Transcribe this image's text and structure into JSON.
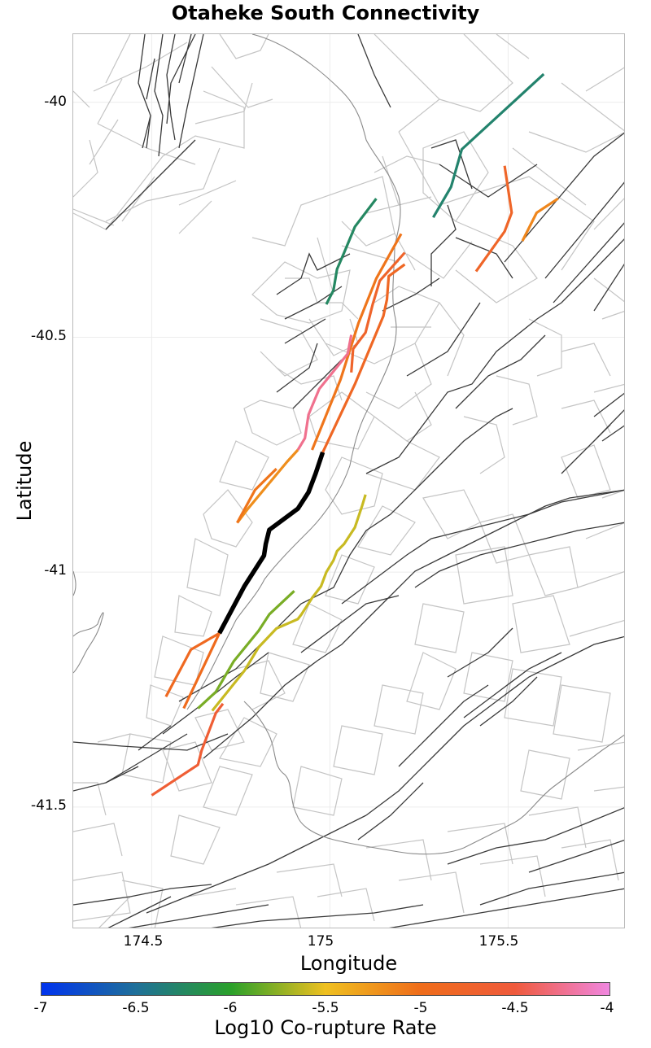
{
  "title": "Otaheke South Connectivity",
  "chart_data": {
    "type": "map",
    "title": "Otaheke South Connectivity",
    "xlabel": "Longitude",
    "ylabel": "Latitude",
    "xlim": [
      174.28,
      175.83
    ],
    "ylim": [
      -41.76,
      -39.855
    ],
    "xticks": [
      "174.5",
      "175",
      "175.5"
    ],
    "yticks": [
      "-40",
      "-40.5",
      "-41",
      "-41.5"
    ],
    "xtick_values": [
      174.5,
      175.0,
      175.5
    ],
    "ytick_values": [
      -40.0,
      -40.5,
      -41.0,
      -41.5
    ],
    "colorbar": {
      "label": "Log10 Co-rupture Rate",
      "range": [
        -7,
        -4
      ],
      "ticks": [
        "-7",
        "-6.5",
        "-6",
        "-5.5",
        "-5",
        "-4.5",
        "-4"
      ],
      "colors": [
        "#0033ee",
        "#1f7099",
        "#2aa02a",
        "#efc020",
        "#ef6d1a",
        "#ef5a3c",
        "#f087e0"
      ]
    },
    "target_fault": {
      "name": "Otaheke South",
      "color": "#000000",
      "path": [
        [
          174.69,
          -41.13
        ],
        [
          174.76,
          -41.03
        ],
        [
          174.815,
          -40.965
        ],
        [
          174.82,
          -40.94
        ],
        [
          174.83,
          -40.91
        ],
        [
          174.91,
          -40.865
        ],
        [
          174.94,
          -40.83
        ],
        [
          174.96,
          -40.79
        ],
        [
          174.98,
          -40.745
        ]
      ]
    },
    "co_rupture_faults": [
      {
        "rate": -6.25,
        "path": [
          [
            174.99,
            -40.43
          ],
          [
            175.01,
            -40.4
          ],
          [
            175.02,
            -40.355
          ],
          [
            175.04,
            -40.32
          ],
          [
            175.07,
            -40.265
          ],
          [
            175.13,
            -40.205
          ]
        ]
      },
      {
        "rate": -6.3,
        "path": [
          [
            175.29,
            -40.245
          ],
          [
            175.34,
            -40.18
          ],
          [
            175.37,
            -40.1
          ],
          [
            175.6,
            -39.94
          ]
        ]
      },
      {
        "rate": -4.8,
        "path": [
          [
            175.41,
            -40.36
          ],
          [
            175.49,
            -40.275
          ],
          [
            175.51,
            -40.235
          ],
          [
            175.49,
            -40.135
          ]
        ]
      },
      {
        "rate": -5.15,
        "path": [
          [
            175.54,
            -40.295
          ],
          [
            175.58,
            -40.235
          ],
          [
            175.64,
            -40.205
          ]
        ]
      },
      {
        "rate": -5.05,
        "path": [
          [
            174.95,
            -40.74
          ],
          [
            175.03,
            -40.59
          ],
          [
            175.08,
            -40.47
          ],
          [
            175.13,
            -40.375
          ],
          [
            175.2,
            -40.28
          ]
        ]
      },
      {
        "rate": -4.75,
        "path": [
          [
            175.06,
            -40.575
          ],
          [
            175.065,
            -40.525
          ],
          [
            175.1,
            -40.49
          ],
          [
            175.12,
            -40.43
          ],
          [
            175.14,
            -40.38
          ],
          [
            175.21,
            -40.32
          ]
        ]
      },
      {
        "rate": -4.85,
        "path": [
          [
            174.98,
            -40.745
          ],
          [
            175.07,
            -40.6
          ],
          [
            175.15,
            -40.455
          ],
          [
            175.16,
            -40.42
          ],
          [
            175.165,
            -40.37
          ],
          [
            175.21,
            -40.345
          ]
        ]
      },
      {
        "rate": -4.25,
        "path": [
          [
            174.91,
            -40.74
          ],
          [
            174.93,
            -40.715
          ],
          [
            174.94,
            -40.665
          ],
          [
            174.97,
            -40.61
          ],
          [
            175.05,
            -40.535
          ],
          [
            175.06,
            -40.495
          ]
        ]
      },
      {
        "rate": -5.2,
        "path": [
          [
            174.74,
            -40.895
          ],
          [
            174.77,
            -40.865
          ],
          [
            174.88,
            -40.765
          ],
          [
            174.91,
            -40.74
          ]
        ]
      },
      {
        "rate": -4.9,
        "path": [
          [
            174.54,
            -41.265
          ],
          [
            174.61,
            -41.165
          ],
          [
            174.69,
            -41.13
          ]
        ]
      },
      {
        "rate": -5.05,
        "path": [
          [
            174.74,
            -40.895
          ],
          [
            174.79,
            -40.825
          ],
          [
            174.85,
            -40.78
          ]
        ]
      },
      {
        "rate": -4.95,
        "path": [
          [
            174.59,
            -41.29
          ],
          [
            174.69,
            -41.13
          ]
        ]
      },
      {
        "rate": -4.6,
        "path": [
          [
            174.5,
            -41.475
          ],
          [
            174.56,
            -41.445
          ],
          [
            174.63,
            -41.41
          ],
          [
            174.64,
            -41.38
          ],
          [
            174.68,
            -41.3
          ],
          [
            174.7,
            -41.28
          ]
        ]
      },
      {
        "rate": -5.8,
        "path": [
          [
            174.63,
            -41.29
          ],
          [
            174.68,
            -41.255
          ],
          [
            174.73,
            -41.19
          ],
          [
            174.8,
            -41.125
          ],
          [
            174.83,
            -41.09
          ],
          [
            174.9,
            -41.04
          ]
        ]
      },
      {
        "rate": -5.6,
        "path": [
          [
            174.67,
            -41.295
          ],
          [
            174.76,
            -41.21
          ],
          [
            174.8,
            -41.16
          ],
          [
            174.85,
            -41.12
          ],
          [
            174.91,
            -41.1
          ],
          [
            174.92,
            -41.09
          ],
          [
            174.95,
            -41.055
          ],
          [
            174.975,
            -41.03
          ],
          [
            174.99,
            -41.0
          ],
          [
            175.01,
            -40.975
          ],
          [
            175.02,
            -40.955
          ],
          [
            175.04,
            -40.94
          ],
          [
            175.07,
            -40.905
          ],
          [
            175.09,
            -40.86
          ],
          [
            175.1,
            -40.835
          ]
        ]
      }
    ]
  }
}
